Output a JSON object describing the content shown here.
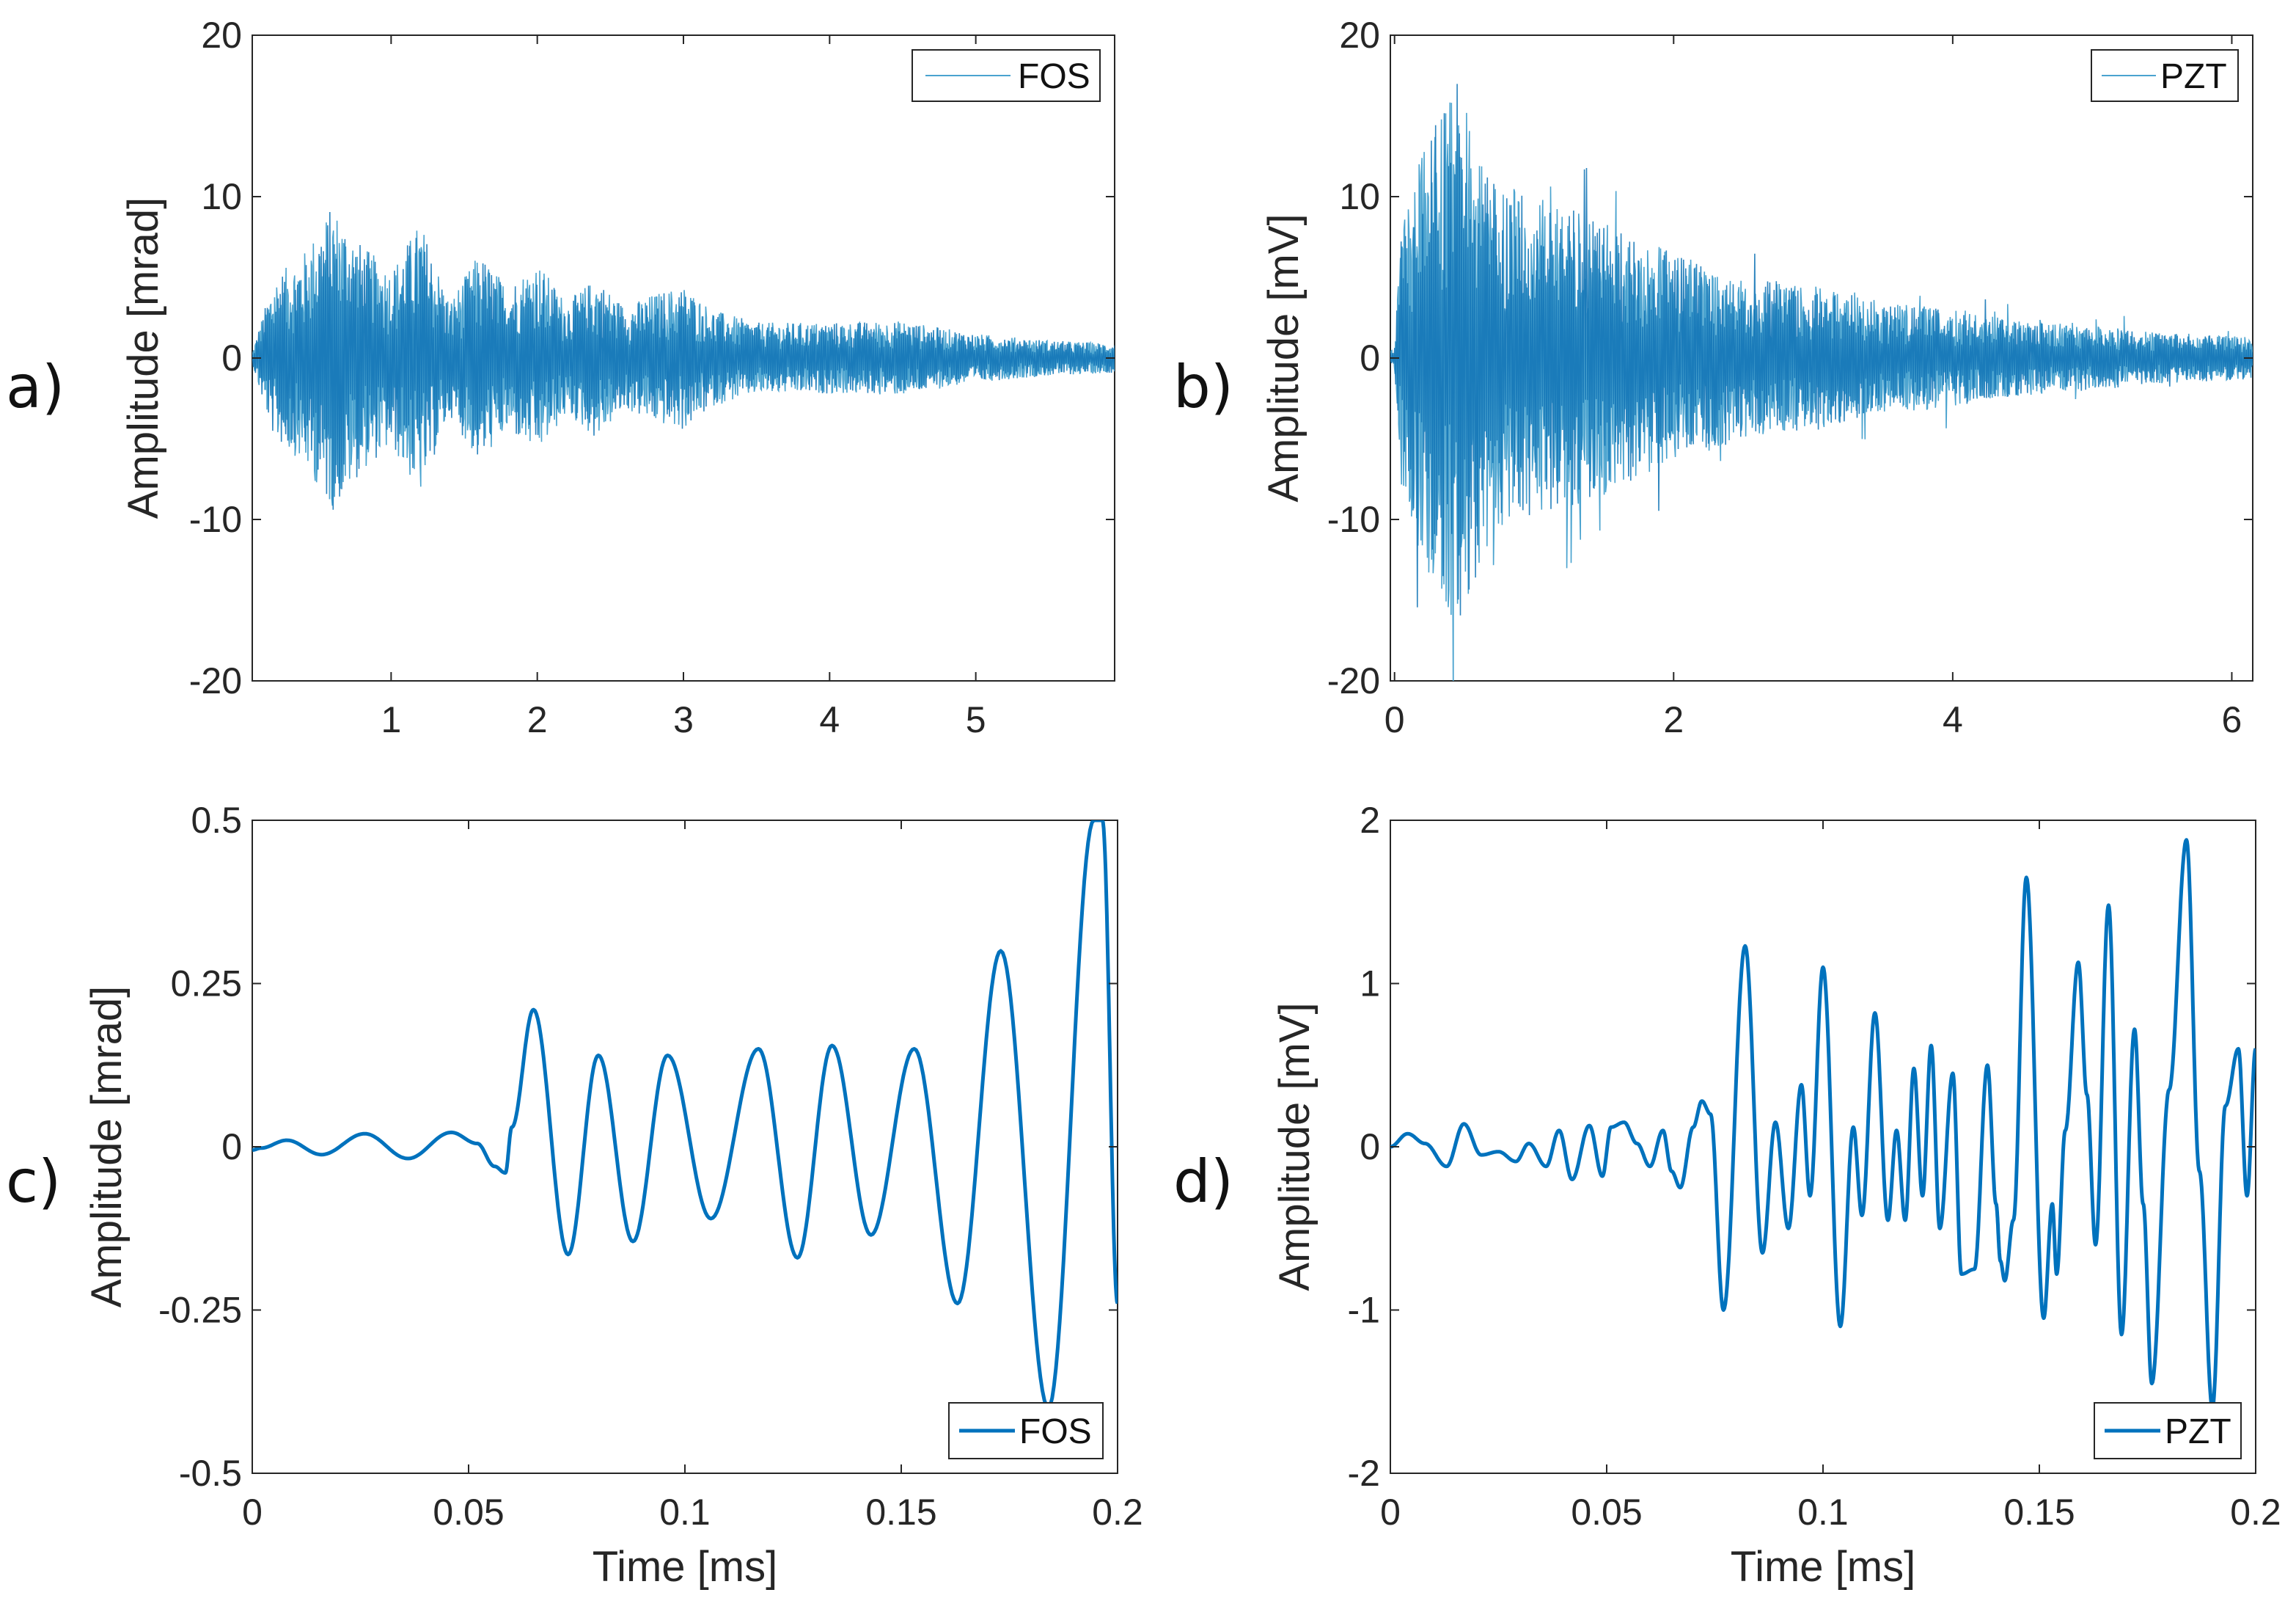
{
  "colors": {
    "series": "#0072BD",
    "dense_a": "#4aa3cf",
    "dense_b": "#1577b7"
  },
  "chart_data": [
    {
      "id": "a",
      "panel_label": "a)",
      "type": "line",
      "ylabel": "Amplitude [mrad]",
      "xlabel": "",
      "xlim": [
        0.05,
        5.95
      ],
      "ylim": [
        -20,
        20
      ],
      "xticks": [
        1,
        2,
        3,
        4,
        5
      ],
      "xtick_labels": [
        "1",
        "2",
        "3",
        "4",
        "5"
      ],
      "yticks": [
        -20,
        -10,
        0,
        10,
        20
      ],
      "ytick_labels": [
        "-20",
        "-10",
        "0",
        "10",
        "20"
      ],
      "legend": "FOS",
      "legend_loc": "top-right",
      "envelope": {
        "x": [
          0.05,
          0.1,
          0.2,
          0.4,
          0.6,
          0.8,
          1.0,
          1.2,
          1.4,
          1.6,
          1.8,
          2.0,
          2.2,
          2.4,
          2.6,
          2.8,
          3.0,
          3.2,
          3.5,
          4.0,
          4.5,
          5.0,
          5.5,
          5.95
        ],
        "y": [
          0.3,
          2,
          5,
          6.5,
          9.5,
          7,
          5.5,
          8.5,
          3.5,
          6.5,
          4.5,
          6,
          3.5,
          5,
          3.2,
          4,
          4.5,
          3,
          2.2,
          2.2,
          2.3,
          1.5,
          1.1,
          0.9
        ]
      }
    },
    {
      "id": "b",
      "panel_label": "b)",
      "type": "line",
      "ylabel": "Amplitude [mV]",
      "xlabel": "",
      "xlim": [
        -0.03,
        6.15
      ],
      "ylim": [
        -20,
        20
      ],
      "xticks": [
        0,
        2,
        4,
        6
      ],
      "xtick_labels": [
        "0",
        "2",
        "4",
        "6"
      ],
      "yticks": [
        -20,
        -10,
        0,
        10,
        20
      ],
      "ytick_labels": [
        "-20",
        "-10",
        "0",
        "10",
        "20"
      ],
      "legend": "PZT",
      "legend_loc": "top-right",
      "envelope": {
        "x": [
          0,
          0.05,
          0.2,
          0.45,
          0.7,
          1.0,
          1.5,
          2.0,
          2.5,
          3.0,
          3.5,
          4.0,
          4.5,
          5.0,
          5.5,
          6.15
        ],
        "y": [
          0.5,
          8,
          13,
          17,
          11,
          10,
          8.5,
          6.5,
          5,
          4.5,
          3.5,
          3,
          2.3,
          2,
          1.6,
          1.3
        ]
      }
    },
    {
      "id": "c",
      "panel_label": "c)",
      "type": "line",
      "ylabel": "Amplitude [mrad]",
      "xlabel": "Time [ms]",
      "xlim": [
        0,
        0.2
      ],
      "ylim": [
        -0.5,
        0.5
      ],
      "xticks": [
        0,
        0.05,
        0.1,
        0.15,
        0.2
      ],
      "xtick_labels": [
        "0",
        "0.05",
        "0.1",
        "0.15",
        "0.2"
      ],
      "yticks": [
        -0.5,
        -0.25,
        0,
        0.25,
        0.5
      ],
      "ytick_labels": [
        "-0.5",
        "-0.25",
        "0",
        "0.25",
        "0.5"
      ],
      "legend": "FOS",
      "legend_loc": "bottom-right",
      "x": [
        0,
        0.002,
        0.008,
        0.016,
        0.026,
        0.036,
        0.046,
        0.052,
        0.056,
        0.0585,
        0.06,
        0.065,
        0.073,
        0.08,
        0.088,
        0.096,
        0.106,
        0.117,
        0.126,
        0.134,
        0.143,
        0.153,
        0.163,
        0.173,
        0.184,
        0.1945,
        0.1965,
        0.2
      ],
      "y": [
        -0.005,
        -0.002,
        0.01,
        -0.012,
        0.02,
        -0.018,
        0.022,
        0.005,
        -0.03,
        -0.04,
        0.03,
        0.21,
        -0.165,
        0.14,
        -0.145,
        0.14,
        -0.11,
        0.15,
        -0.17,
        0.155,
        -0.135,
        0.15,
        -0.24,
        0.3,
        -0.4,
        0.5,
        0.5,
        -0.24
      ]
    },
    {
      "id": "d",
      "panel_label": "d)",
      "type": "line",
      "ylabel": "Amplitude [mV]",
      "xlabel": "Time [ms]",
      "xlim": [
        0,
        0.2
      ],
      "ylim": [
        -2,
        2
      ],
      "xticks": [
        0,
        0.05,
        0.1,
        0.15,
        0.2
      ],
      "xtick_labels": [
        "0",
        "0.05",
        "0.1",
        "0.15",
        "0.2"
      ],
      "yticks": [
        -2,
        -1,
        0,
        1,
        2
      ],
      "ytick_labels": [
        "-2",
        "-1",
        "0",
        "1",
        "2"
      ],
      "legend": "PZT",
      "legend_loc": "bottom-right",
      "x": [
        0,
        0.004,
        0.008,
        0.013,
        0.017,
        0.021,
        0.025,
        0.029,
        0.032,
        0.036,
        0.039,
        0.042,
        0.046,
        0.049,
        0.051,
        0.054,
        0.057,
        0.06,
        0.063,
        0.065,
        0.067,
        0.07,
        0.072,
        0.074,
        0.077,
        0.082,
        0.086,
        0.089,
        0.092,
        0.095,
        0.097,
        0.1,
        0.104,
        0.107,
        0.109,
        0.112,
        0.115,
        0.117,
        0.119,
        0.121,
        0.123,
        0.125,
        0.127,
        0.13,
        0.132,
        0.135,
        0.138,
        0.14,
        0.141,
        0.142,
        0.144,
        0.147,
        0.151,
        0.153,
        0.154,
        0.156,
        0.159,
        0.161,
        0.163,
        0.166,
        0.169,
        0.172,
        0.174,
        0.176,
        0.18,
        0.184,
        0.187,
        0.19,
        0.193,
        0.196,
        0.198,
        0.2
      ],
      "y": [
        0,
        0.08,
        0.02,
        -0.12,
        0.14,
        -0.05,
        -0.03,
        -0.09,
        0.02,
        -0.12,
        0.1,
        -0.2,
        0.13,
        -0.18,
        0.12,
        0.15,
        0.02,
        -0.12,
        0.1,
        -0.15,
        -0.25,
        0.12,
        0.28,
        0.2,
        -1.0,
        1.23,
        -0.65,
        0.15,
        -0.5,
        0.38,
        -0.3,
        1.1,
        -1.1,
        0.12,
        -0.42,
        0.82,
        -0.45,
        0.1,
        -0.45,
        0.48,
        -0.3,
        0.62,
        -0.5,
        0.45,
        -0.78,
        -0.75,
        0.5,
        -0.35,
        -0.7,
        -0.82,
        -0.45,
        1.65,
        -1.05,
        -0.35,
        -0.78,
        0.1,
        1.13,
        0.32,
        -0.6,
        1.48,
        -1.15,
        0.72,
        -0.35,
        -1.45,
        0.35,
        1.88,
        -0.15,
        -1.6,
        0.25,
        0.6,
        -0.3,
        0.6
      ]
    }
  ]
}
